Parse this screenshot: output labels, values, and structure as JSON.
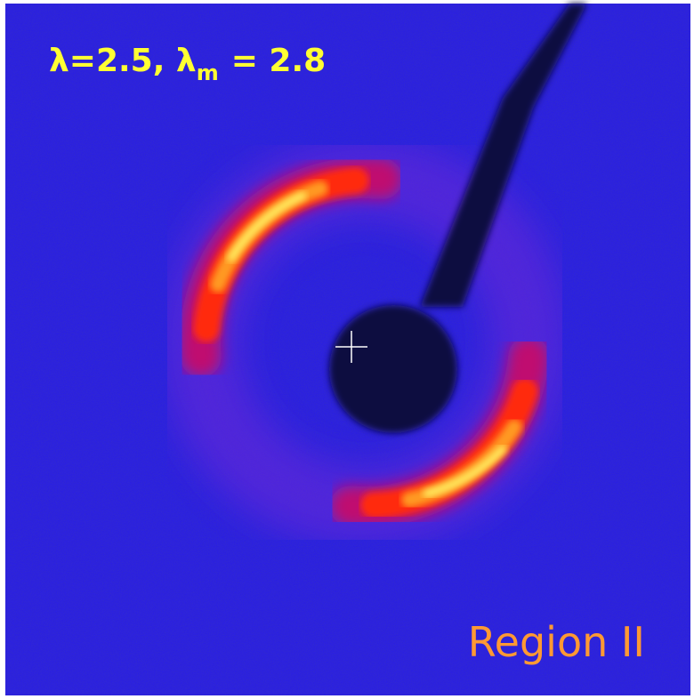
{
  "annotations": {
    "lambda_label": {
      "main": "λ=2.5, λ",
      "subscript": "m",
      "rest": "= 2.8"
    },
    "region_label": "Region II"
  }
}
